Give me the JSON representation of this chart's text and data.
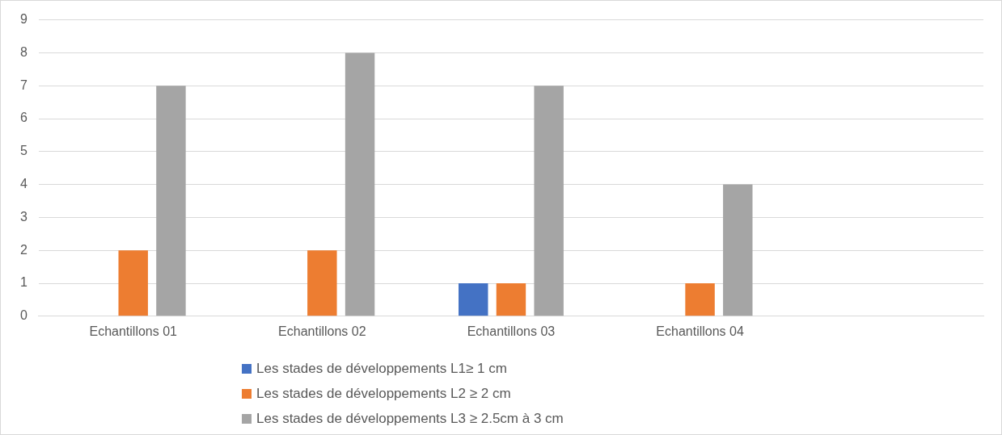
{
  "chart_data": {
    "type": "bar",
    "categories": [
      "Echantillons 01",
      "Echantillons 02",
      "Echantillons 03",
      "Echantillons 04",
      null
    ],
    "series": [
      {
        "name": "Les stades de développements L1≥ 1 cm",
        "color": "#4472c4",
        "values": [
          0,
          0,
          1,
          0,
          null
        ]
      },
      {
        "name": "Les stades de développements L2 ≥ 2 cm",
        "color": "#ed7d31",
        "values": [
          2,
          2,
          1,
          1,
          null
        ]
      },
      {
        "name": "Les stades de développements L3 ≥ 2.5cm à 3 cm",
        "color": "#a5a5a5",
        "values": [
          7,
          8,
          7,
          4,
          null
        ]
      }
    ],
    "ylim": [
      0,
      9
    ],
    "yticks": [
      0,
      1,
      2,
      3,
      4,
      5,
      6,
      7,
      8,
      9
    ],
    "grid": "y",
    "legend": "bottom"
  }
}
